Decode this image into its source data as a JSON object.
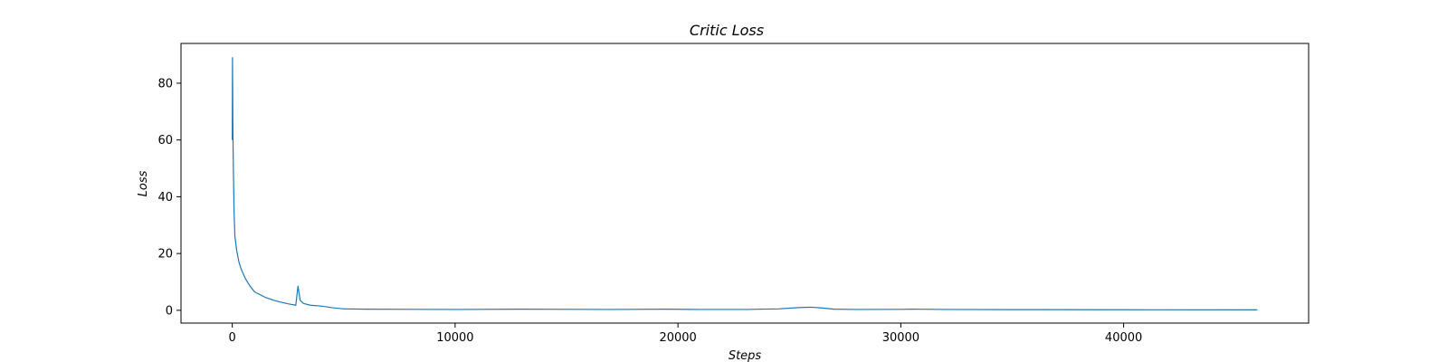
{
  "chart_data": {
    "type": "line",
    "title": "Critic Loss",
    "xlabel": "Steps",
    "ylabel": "Loss",
    "xlim": [
      -2300,
      48300
    ],
    "ylim": [
      -4.5,
      94
    ],
    "xticks": [
      0,
      10000,
      20000,
      30000,
      40000
    ],
    "xtick_labels": [
      "0",
      "10000",
      "20000",
      "30000",
      "40000"
    ],
    "yticks": [
      0,
      20,
      40,
      60,
      80
    ],
    "ytick_labels": [
      "0",
      "20",
      "40",
      "60",
      "80"
    ],
    "grid": false,
    "legend": "none",
    "colors": {
      "line": "#1f77b4",
      "axes": "#000000",
      "background": "#ffffff"
    },
    "series": [
      {
        "x": [
          0,
          10,
          20,
          30,
          50,
          80,
          120,
          200,
          300,
          400,
          600,
          800,
          1000,
          1500,
          2000,
          2500,
          2850,
          2950,
          3000,
          3050,
          3200,
          3500,
          4000,
          4500,
          5000,
          6000,
          8000,
          10000,
          13000,
          15000,
          17000,
          19500,
          21000,
          23000,
          24500,
          25500,
          26000,
          26500,
          27000,
          28000,
          30000,
          30500,
          32000,
          35000,
          40000,
          46000
        ],
        "y": [
          60,
          89,
          77,
          62,
          50,
          35,
          26,
          21,
          17,
          14.5,
          11,
          8.5,
          6.5,
          4.5,
          3.2,
          2.3,
          1.8,
          8.5,
          6,
          3.5,
          2.4,
          1.8,
          1.5,
          0.9,
          0.5,
          0.4,
          0.35,
          0.3,
          0.4,
          0.35,
          0.3,
          0.4,
          0.3,
          0.3,
          0.5,
          1,
          1.1,
          0.8,
          0.4,
          0.3,
          0.35,
          0.4,
          0.3,
          0.25,
          0.2,
          0.15
        ]
      }
    ]
  }
}
